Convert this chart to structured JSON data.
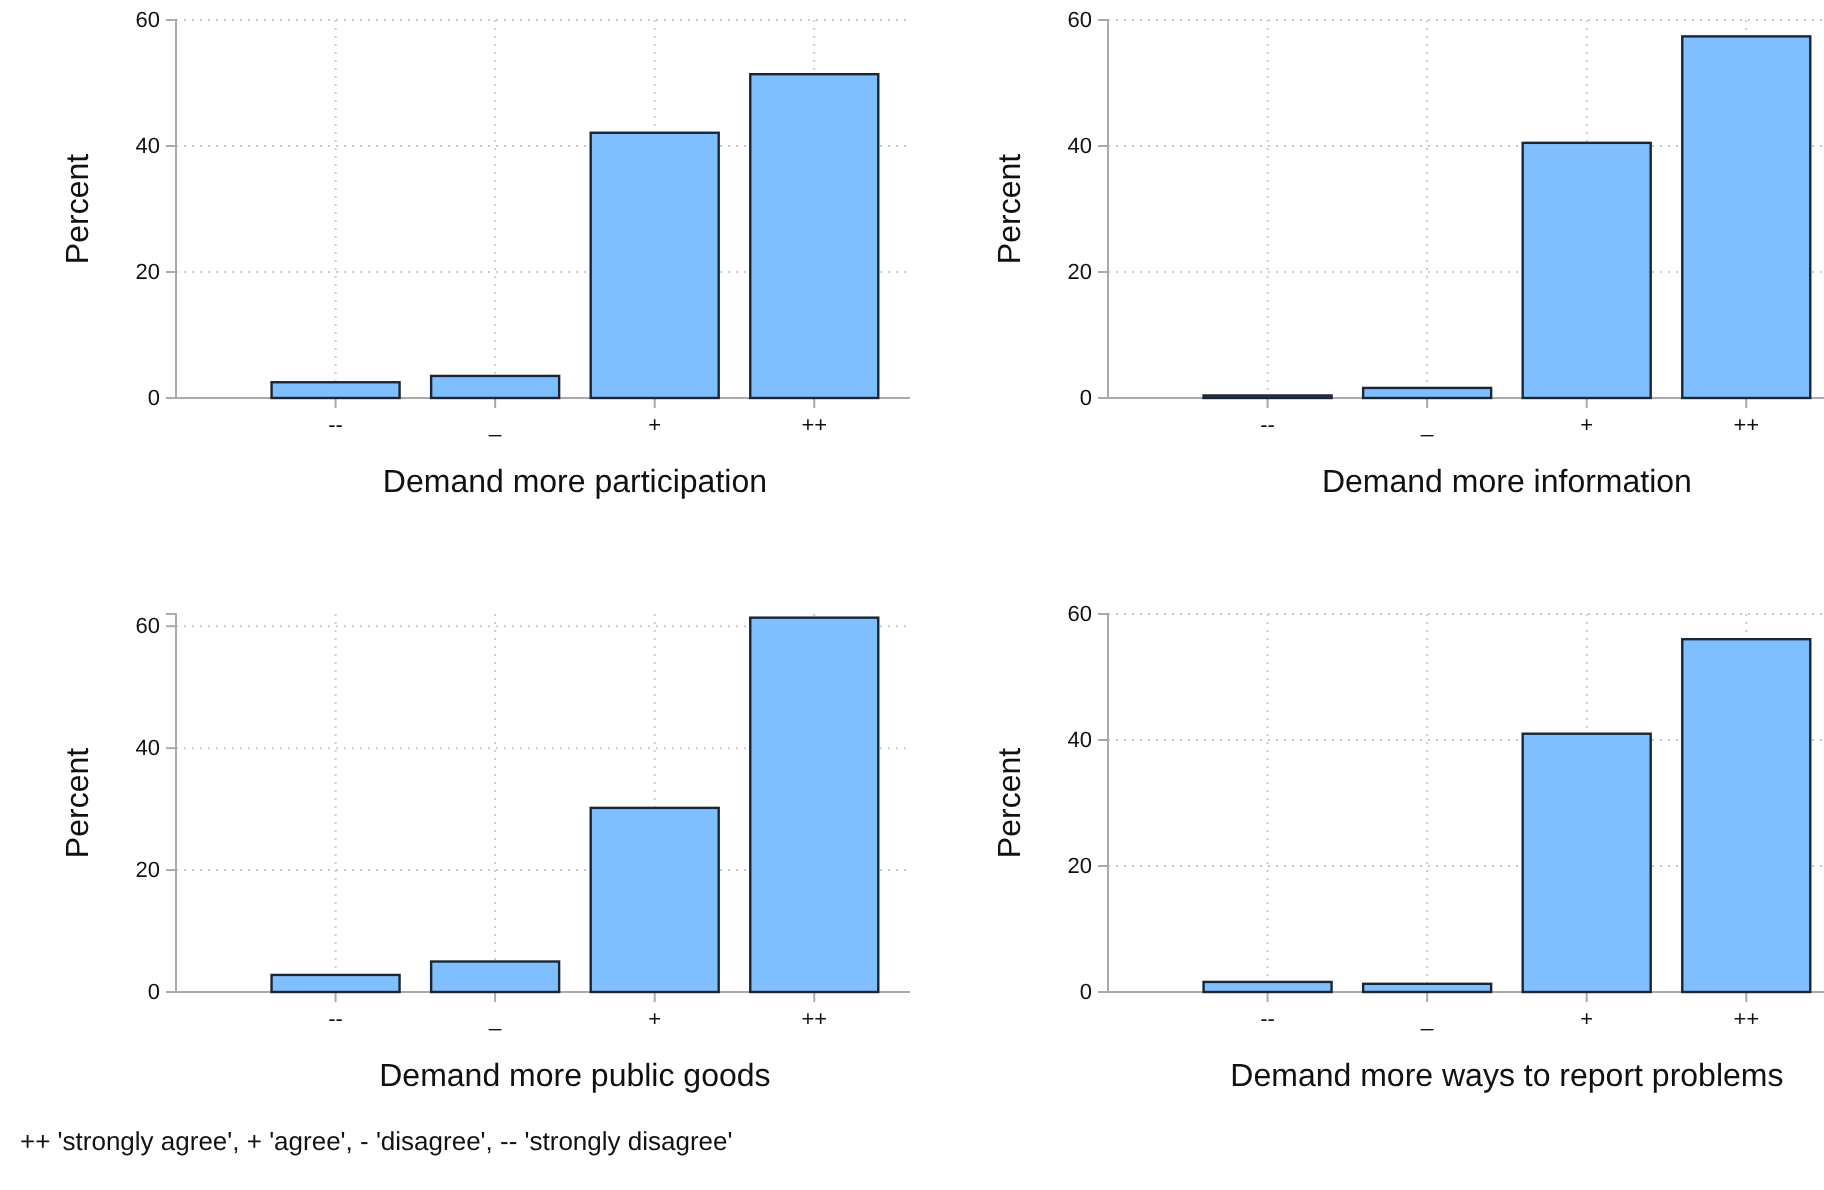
{
  "chart_data": [
    {
      "type": "bar",
      "xlabel": "Demand more participation",
      "ylabel": "Percent",
      "categories": [
        "--",
        "_",
        "+",
        "++"
      ],
      "values": [
        2.5,
        3.5,
        42.1,
        51.4
      ],
      "color": "#80bfff",
      "ylim": [
        0,
        60
      ],
      "yticks": [
        0,
        20,
        40,
        60
      ],
      "grid": true
    },
    {
      "type": "bar",
      "xlabel": "Demand more information",
      "ylabel": "Percent",
      "categories": [
        "--",
        "_",
        "+",
        "++"
      ],
      "values": [
        0.4,
        1.6,
        40.5,
        57.4
      ],
      "color": "#80bfff",
      "ylim": [
        0,
        60
      ],
      "yticks": [
        0,
        20,
        40,
        60
      ],
      "grid": true
    },
    {
      "type": "bar",
      "xlabel": "Demand more public goods",
      "ylabel": "Percent",
      "categories": [
        "--",
        "_",
        "+",
        "++"
      ],
      "values": [
        2.8,
        5.0,
        30.2,
        61.4
      ],
      "color": "#80bfff",
      "ylim": [
        0,
        62
      ],
      "yticks": [
        0,
        20,
        40,
        60
      ],
      "grid": true
    },
    {
      "type": "bar",
      "xlabel": "Demand more ways to report problems",
      "ylabel": "Percent",
      "categories": [
        "--",
        "_",
        "+",
        "++"
      ],
      "values": [
        1.6,
        1.3,
        41.0,
        56.0
      ],
      "color": "#80bfff",
      "ylim": [
        0,
        60
      ],
      "yticks": [
        0,
        20,
        40,
        60
      ],
      "grid": true,
      "annotations": [
        "++ 'strongly agree', + 'agree', - 'disagree', -- 'strongly disagree'"
      ]
    }
  ]
}
